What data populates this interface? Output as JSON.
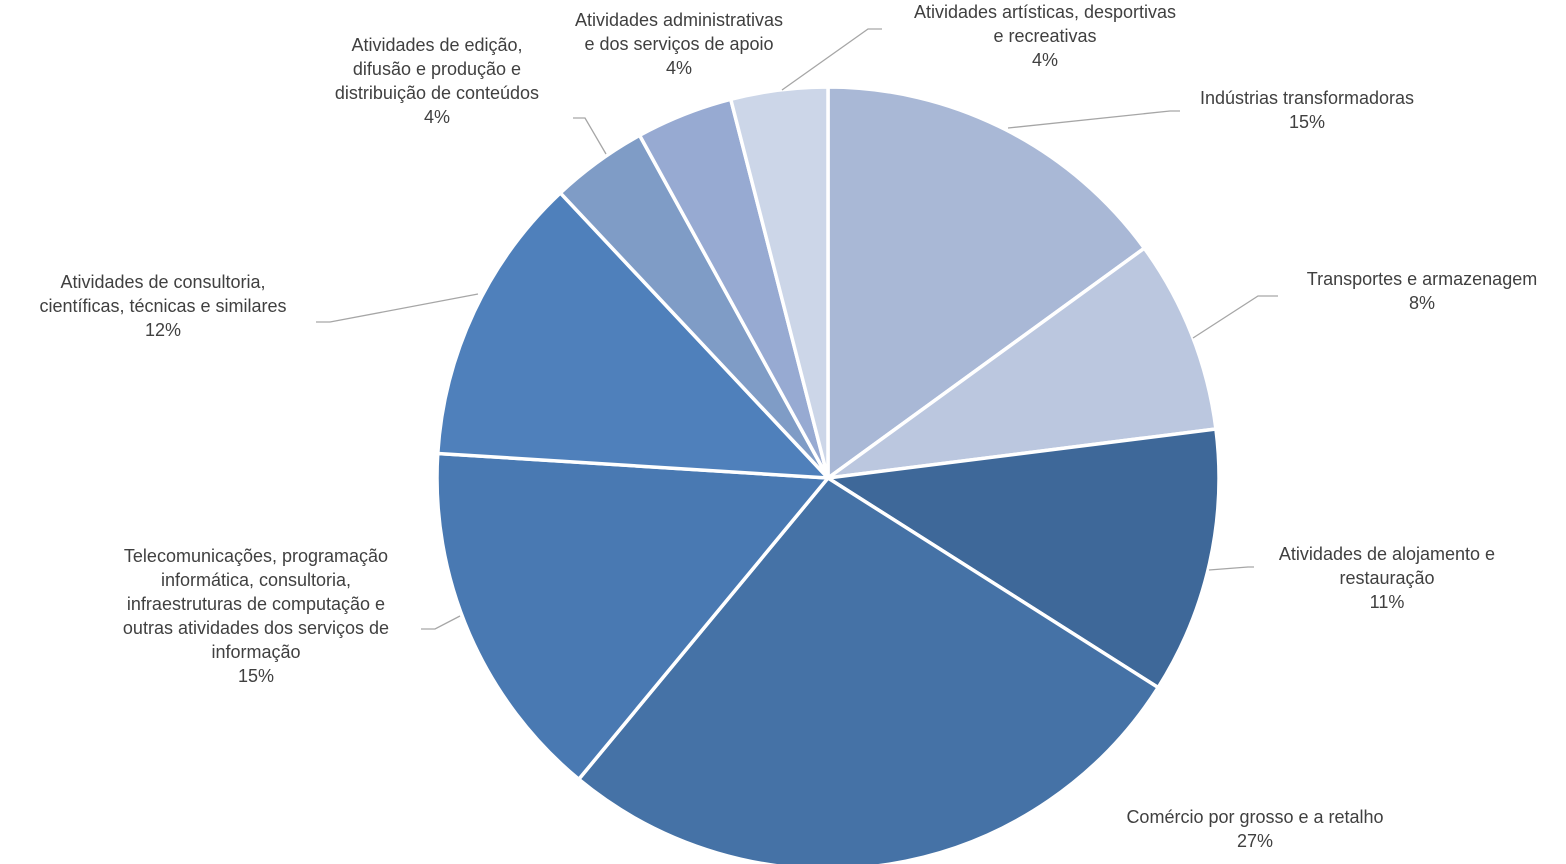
{
  "chart_data": {
    "type": "pie",
    "title": "",
    "start_angle_deg": 0,
    "direction": "clockwise",
    "slices": [
      {
        "label_lines": [
          "Indústrias transformadoras"
        ],
        "value": 15,
        "value_label": "15%",
        "color": "#a9b8d6"
      },
      {
        "label_lines": [
          "Transportes e armazenagem"
        ],
        "value": 8,
        "value_label": "8%",
        "color": "#bbc7df"
      },
      {
        "label_lines": [
          "Atividades de alojamento e",
          "restauração"
        ],
        "value": 11,
        "value_label": "11%",
        "color": "#3e6899"
      },
      {
        "label_lines": [
          "Comércio por grosso e a retalho"
        ],
        "value": 27,
        "value_label": "27%",
        "color": "#4572a6"
      },
      {
        "label_lines": [
          "Telecomunicações, programação",
          "informática, consultoria,",
          "infraestruturas de computação e",
          "outras atividades dos serviços de",
          "informação"
        ],
        "value": 15,
        "value_label": "15%",
        "color": "#4979b2"
      },
      {
        "label_lines": [
          "Atividades de consultoria,",
          "científicas, técnicas e similares"
        ],
        "value": 12,
        "value_label": "12%",
        "color": "#4f80bb"
      },
      {
        "label_lines": [
          "Atividades de edição,",
          "difusão e produção e",
          "distribuição de conteúdos"
        ],
        "value": 4,
        "value_label": "4%",
        "color": "#7f9cc6"
      },
      {
        "label_lines": [
          "Atividades administrativas",
          "e dos serviços de apoio"
        ],
        "value": 4,
        "value_label": "4%",
        "color": "#97aad2"
      },
      {
        "label_lines": [
          "Atividades artísticas, desportivas",
          "e recreativas"
        ],
        "value": 4,
        "value_label": "4%",
        "color": "#ccd6e8"
      }
    ]
  }
}
